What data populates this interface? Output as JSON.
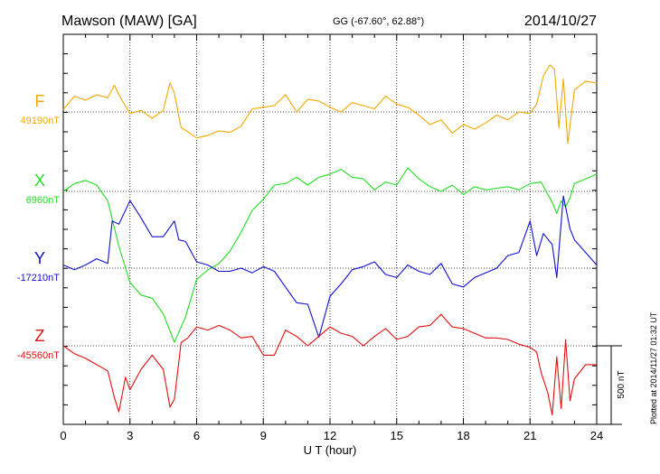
{
  "header": {
    "station": "Mawson (MAW)  [GA]",
    "coords": "GG (-67.60°,  62.88°)",
    "date": "2014/10/27"
  },
  "plot_stamp": "Plotted at 2014/11/27 01:32 UT",
  "scale_label": "500 nT",
  "colors": {
    "F": "#f5a800",
    "X": "#22dd22",
    "Y": "#1010d0",
    "Z": "#e01010",
    "axis": "#000000"
  },
  "chart_data": {
    "type": "line",
    "title": "Mawson (MAW)  [GA]",
    "xlabel": "U T (hour)",
    "ylabel": "",
    "xlim": [
      0,
      24
    ],
    "xticks": [
      "0",
      "3",
      "6",
      "9",
      "12",
      "15",
      "18",
      "21",
      "24"
    ],
    "grid": true,
    "scale_bar_nT": 500,
    "series": [
      {
        "name": "F",
        "baseline_label": "49190nT",
        "baseline": 49190,
        "color": "#f5a800",
        "x": [
          0,
          0.5,
          1,
          1.5,
          2,
          2.3,
          2.5,
          2.7,
          3,
          3.5,
          4,
          4.5,
          4.8,
          5,
          5.3,
          5.6,
          6,
          6.5,
          7,
          7.5,
          8,
          8.5,
          9,
          9.5,
          10,
          10.5,
          11,
          11.5,
          12,
          12.5,
          13,
          13.5,
          14,
          14.5,
          15,
          15.5,
          16,
          16.5,
          17,
          17.5,
          18,
          18.5,
          19,
          19.5,
          20,
          20.5,
          21,
          21.3,
          21.6,
          21.9,
          22.1,
          22.3,
          22.5,
          22.7,
          23,
          23.5,
          24
        ],
        "values": [
          15,
          100,
          75,
          110,
          90,
          170,
          110,
          60,
          -10,
          10,
          -40,
          10,
          185,
          120,
          -100,
          -125,
          -165,
          -150,
          -120,
          -130,
          -90,
          20,
          30,
          40,
          110,
          0,
          80,
          70,
          30,
          0,
          60,
          40,
          20,
          100,
          50,
          30,
          -20,
          -80,
          -50,
          -135,
          -80,
          -110,
          -70,
          -20,
          -50,
          0,
          -10,
          50,
          230,
          300,
          270,
          -100,
          210,
          -200,
          140,
          195,
          185
        ]
      },
      {
        "name": "X",
        "baseline_label": "6960nT",
        "baseline": 6960,
        "color": "#22dd22",
        "x": [
          0,
          0.5,
          1,
          1.5,
          2,
          2.5,
          3,
          3.5,
          4,
          4.5,
          5,
          5.5,
          6,
          6.5,
          7,
          7.5,
          8,
          8.5,
          9,
          9.5,
          10,
          10.5,
          11,
          11.5,
          12,
          12.5,
          13,
          13.5,
          14,
          14.5,
          15,
          15.5,
          16,
          16.5,
          17,
          17.5,
          18,
          18.5,
          19,
          19.5,
          20,
          20.5,
          21,
          21.5,
          21.8,
          22,
          22.2,
          22.4,
          22.6,
          22.8,
          23,
          23.5,
          24
        ],
        "values": [
          0,
          50,
          70,
          40,
          -60,
          -350,
          -580,
          -660,
          -680,
          -780,
          -960,
          -800,
          -560,
          -500,
          -460,
          -380,
          -260,
          -120,
          -50,
          40,
          50,
          90,
          40,
          90,
          110,
          140,
          90,
          80,
          10,
          60,
          40,
          150,
          80,
          30,
          0,
          40,
          -20,
          30,
          10,
          20,
          30,
          10,
          50,
          60,
          -20,
          -70,
          -140,
          -60,
          -100,
          -40,
          50,
          80,
          110
        ]
      },
      {
        "name": "Y",
        "baseline_label": "-17210nT",
        "baseline": -17210,
        "color": "#1010d0",
        "x": [
          0,
          0.5,
          1,
          1.5,
          2,
          2.2,
          2.5,
          3,
          3.5,
          4,
          4.5,
          5,
          5.2,
          5.5,
          6,
          6.5,
          7,
          7.5,
          8,
          8.5,
          9,
          9.5,
          10,
          10.5,
          11,
          11.5,
          12,
          12.5,
          13,
          13.5,
          14,
          14.5,
          15,
          15.5,
          16,
          16.5,
          17,
          17.5,
          18,
          18.5,
          19,
          19.5,
          20,
          20.5,
          21,
          21.3,
          21.6,
          22,
          22.2,
          22.5,
          22.8,
          23,
          23.5,
          24
        ],
        "values": [
          20,
          -10,
          20,
          60,
          30,
          300,
          280,
          430,
          320,
          200,
          200,
          300,
          180,
          170,
          40,
          20,
          -20,
          -20,
          0,
          -30,
          10,
          -20,
          -120,
          -220,
          -230,
          -440,
          -180,
          -100,
          -10,
          10,
          40,
          -40,
          -60,
          20,
          -20,
          -40,
          30,
          -100,
          -120,
          -60,
          -30,
          0,
          80,
          100,
          300,
          80,
          220,
          150,
          -60,
          460,
          250,
          180,
          100,
          20
        ]
      },
      {
        "name": "Z",
        "baseline_label": "-45560nT",
        "baseline": -45560,
        "color": "#e01010",
        "x": [
          0,
          0.5,
          1,
          1.5,
          2,
          2.3,
          2.5,
          2.8,
          3,
          3.5,
          4,
          4.5,
          4.8,
          5,
          5.3,
          5.6,
          6,
          6.5,
          7,
          7.5,
          8,
          8.5,
          9,
          9.5,
          10,
          10.5,
          11,
          11.5,
          12,
          12.5,
          13,
          13.5,
          14,
          14.5,
          15,
          15.5,
          16,
          16.5,
          17,
          17.5,
          18,
          18.5,
          19,
          19.5,
          20,
          20.5,
          21,
          21.3,
          21.5,
          21.8,
          22,
          22.2,
          22.4,
          22.6,
          22.8,
          23,
          23.5,
          24
        ],
        "values": [
          0,
          -50,
          -80,
          -120,
          -160,
          -330,
          -420,
          -200,
          -280,
          -150,
          -60,
          -150,
          -390,
          -340,
          20,
          50,
          120,
          100,
          130,
          100,
          50,
          60,
          -60,
          -60,
          100,
          60,
          0,
          60,
          120,
          80,
          60,
          0,
          60,
          110,
          40,
          60,
          120,
          130,
          200,
          120,
          110,
          80,
          50,
          50,
          40,
          10,
          -10,
          -40,
          -170,
          -300,
          -440,
          -70,
          -400,
          40,
          -350,
          -210,
          -120,
          -120
        ]
      }
    ]
  }
}
